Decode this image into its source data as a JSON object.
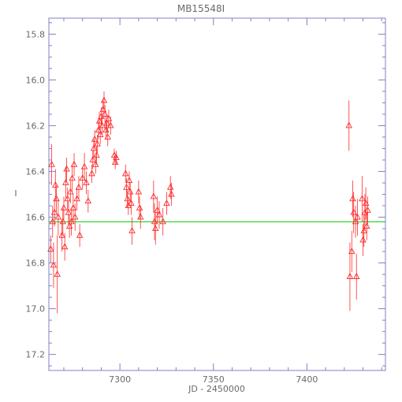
{
  "chart_data": {
    "type": "scatter",
    "title": "MB15548I",
    "xlabel": "JD - 2450000",
    "ylabel": "I",
    "xlim": [
      7262,
      7442
    ],
    "ylim": [
      17.27,
      15.73
    ],
    "y_inverted": true,
    "x_ticks": [
      7300,
      7350,
      7400
    ],
    "y_ticks": [
      15.8,
      16.0,
      16.2,
      16.4,
      16.6,
      16.8,
      17.0,
      17.2
    ],
    "y_tick_labels": [
      "15.8",
      "16.0",
      "16.2",
      "16.4",
      "16.6",
      "16.8",
      "17.0",
      "17.2"
    ],
    "grid": false,
    "marker": "open-triangle",
    "colors": {
      "data": "#ff2a2a",
      "baseline": "#00cc00",
      "axes": "#8080c0",
      "text": "#6a6a6a"
    },
    "baseline": {
      "y": 16.62,
      "x_range": [
        7262,
        7442
      ]
    },
    "series": [
      {
        "points": [
          [
            7263,
            16.74,
            0.06
          ],
          [
            7263.5,
            16.37,
            0.09
          ],
          [
            7264,
            16.62,
            0.07
          ],
          [
            7264.5,
            16.81,
            0.1
          ],
          [
            7265,
            16.58,
            0.06
          ],
          [
            7265.5,
            16.46,
            0.07
          ],
          [
            7266,
            16.52,
            0.06
          ],
          [
            7266.5,
            16.85,
            0.17
          ],
          [
            7267,
            16.6,
            0.08
          ],
          [
            7269,
            16.68,
            0.07
          ],
          [
            7269.5,
            16.62,
            0.06
          ],
          [
            7270,
            16.56,
            0.05
          ],
          [
            7270.5,
            16.73,
            0.06
          ],
          [
            7271,
            16.45,
            0.07
          ],
          [
            7271.5,
            16.39,
            0.05
          ],
          [
            7272,
            16.52,
            0.05
          ],
          [
            7272.5,
            16.58,
            0.05
          ],
          [
            7273,
            16.64,
            0.05
          ],
          [
            7273.5,
            16.49,
            0.05
          ],
          [
            7274,
            16.62,
            0.06
          ],
          [
            7274.5,
            16.43,
            0.06
          ],
          [
            7275,
            16.56,
            0.06
          ],
          [
            7275.5,
            16.37,
            0.05
          ],
          [
            7276,
            16.6,
            0.06
          ],
          [
            7277,
            16.52,
            0.05
          ],
          [
            7278,
            16.47,
            0.05
          ],
          [
            7278.5,
            16.68,
            0.05
          ],
          [
            7280,
            16.43,
            0.05
          ],
          [
            7281,
            16.38,
            0.06
          ],
          [
            7282,
            16.45,
            0.05
          ],
          [
            7283,
            16.53,
            0.05
          ],
          [
            7285,
            16.41,
            0.04
          ],
          [
            7285.5,
            16.35,
            0.04
          ],
          [
            7286,
            16.3,
            0.04
          ],
          [
            7286.5,
            16.26,
            0.04
          ],
          [
            7287,
            16.37,
            0.04
          ],
          [
            7287.5,
            16.33,
            0.04
          ],
          [
            7288,
            16.28,
            0.04
          ],
          [
            7288.5,
            16.22,
            0.04
          ],
          [
            7289,
            16.18,
            0.04
          ],
          [
            7289.5,
            16.24,
            0.04
          ],
          [
            7290,
            16.16,
            0.04
          ],
          [
            7290.5,
            16.2,
            0.04
          ],
          [
            7291,
            16.13,
            0.04
          ],
          [
            7291.5,
            16.09,
            0.04
          ],
          [
            7292,
            16.15,
            0.04
          ],
          [
            7292.5,
            16.22,
            0.04
          ],
          [
            7293,
            16.19,
            0.04
          ],
          [
            7293.5,
            16.25,
            0.04
          ],
          [
            7294,
            16.17,
            0.04
          ],
          [
            7295,
            16.2,
            0.04
          ],
          [
            7297,
            16.33,
            0.03
          ],
          [
            7297.5,
            16.36,
            0.03
          ],
          [
            7298,
            16.34,
            0.03
          ],
          [
            7303,
            16.41,
            0.04
          ],
          [
            7303.5,
            16.47,
            0.04
          ],
          [
            7304,
            16.52,
            0.04
          ],
          [
            7304.5,
            16.55,
            0.04
          ],
          [
            7305,
            16.44,
            0.04
          ],
          [
            7305.5,
            16.49,
            0.04
          ],
          [
            7306,
            16.54,
            0.05
          ],
          [
            7306.5,
            16.66,
            0.06
          ],
          [
            7310,
            16.49,
            0.05
          ],
          [
            7310.5,
            16.56,
            0.05
          ],
          [
            7311,
            16.6,
            0.05
          ],
          [
            7318,
            16.51,
            0.07
          ],
          [
            7318.5,
            16.62,
            0.08
          ],
          [
            7319,
            16.65,
            0.07
          ],
          [
            7320,
            16.57,
            0.06
          ],
          [
            7321,
            16.59,
            0.06
          ],
          [
            7323,
            16.62,
            0.06
          ],
          [
            7325,
            16.54,
            0.05
          ],
          [
            7327,
            16.47,
            0.05
          ],
          [
            7327.5,
            16.5,
            0.05
          ],
          [
            7422.5,
            16.2,
            0.11
          ],
          [
            7423,
            16.86,
            0.15
          ],
          [
            7424,
            16.75,
            0.09
          ],
          [
            7424.5,
            16.52,
            0.08
          ],
          [
            7425,
            16.58,
            0.09
          ],
          [
            7426,
            16.62,
            0.07
          ],
          [
            7426.5,
            16.86,
            0.1
          ],
          [
            7427,
            16.6,
            0.08
          ],
          [
            7429.5,
            16.52,
            0.1
          ],
          [
            7430,
            16.7,
            0.07
          ],
          [
            7430.5,
            16.66,
            0.07
          ],
          [
            7431,
            16.58,
            0.08
          ],
          [
            7431.5,
            16.54,
            0.07
          ],
          [
            7432,
            16.64,
            0.06
          ],
          [
            7432.5,
            16.57,
            0.06
          ]
        ]
      }
    ]
  }
}
